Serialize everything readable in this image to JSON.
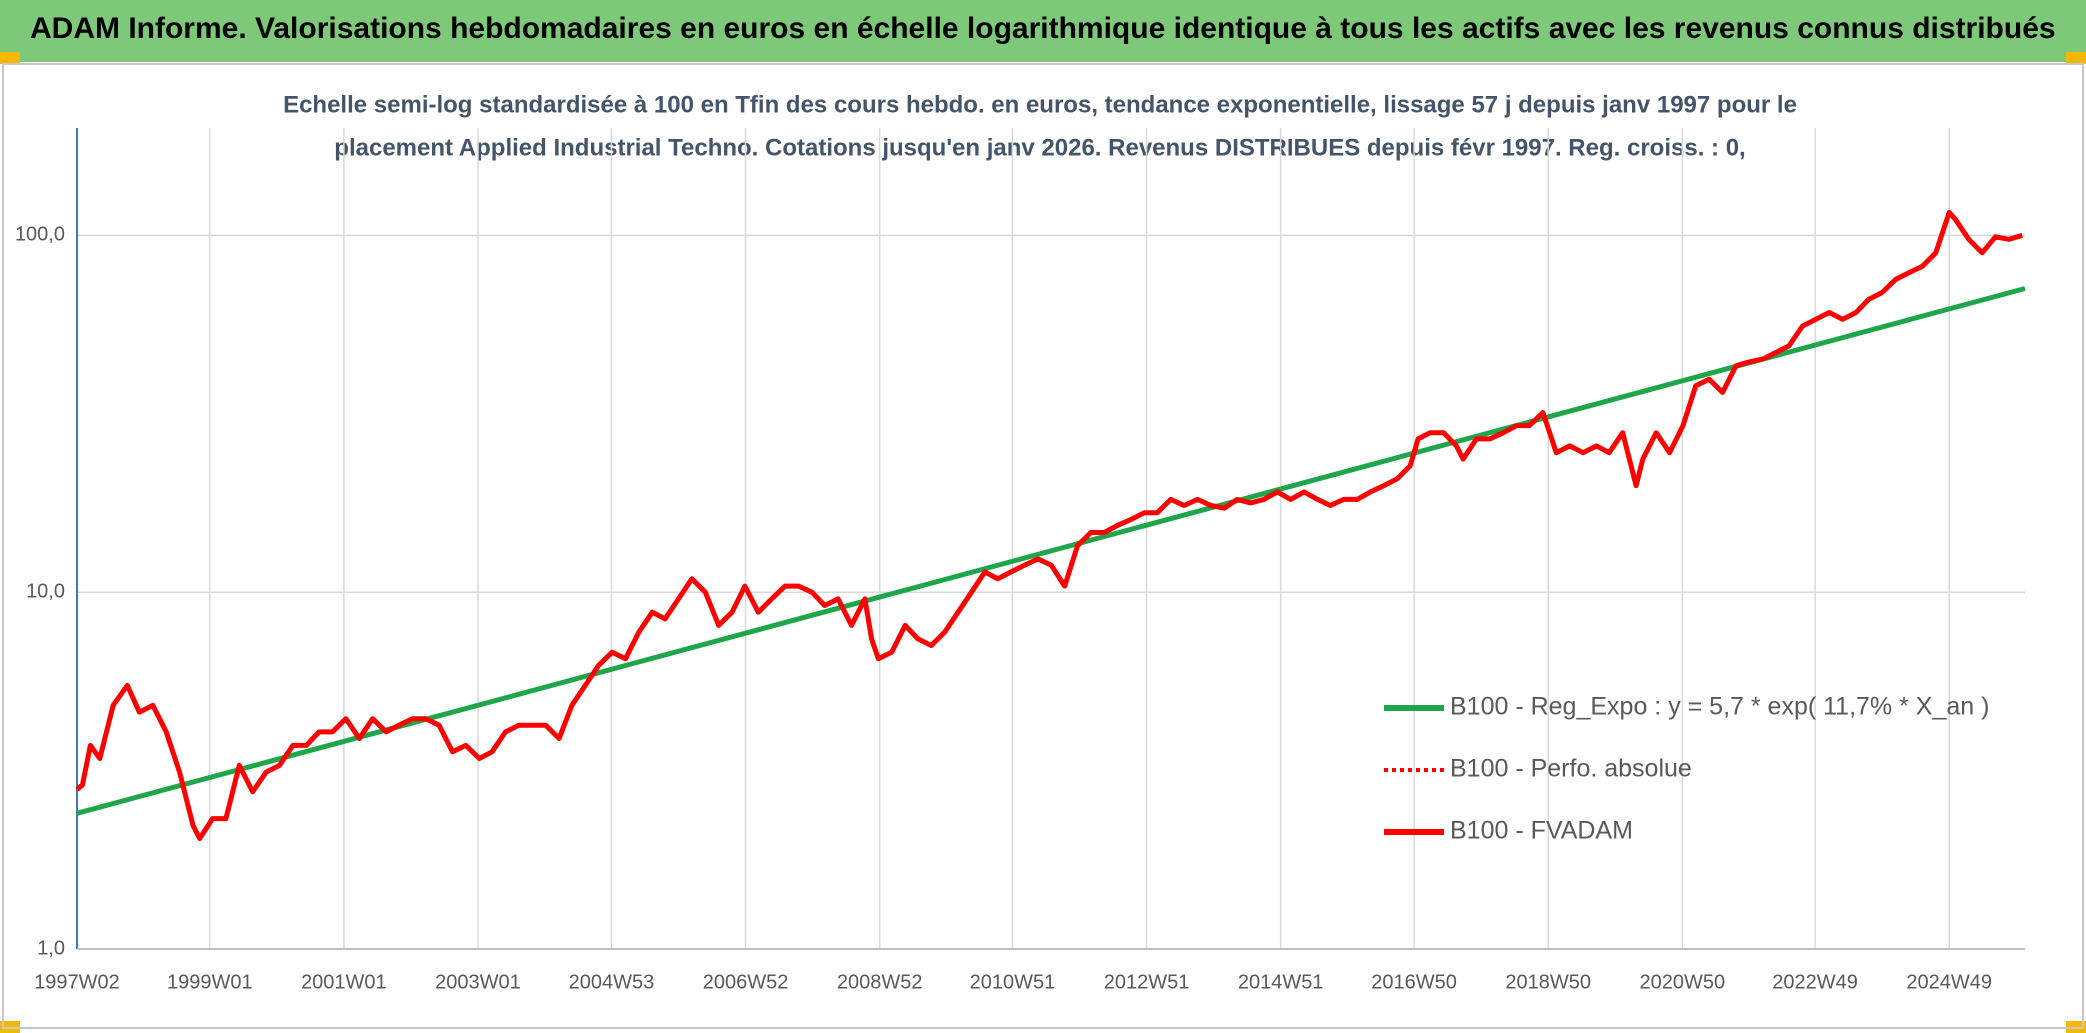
{
  "chart_data": {
    "type": "line",
    "title": "ADAM Informe. Valorisations hebdomadaires en euros en échelle logarithmique identique à tous les actifs avec les revenus connus distribués",
    "subtitle": [
      "Echelle semi-log standardisée à 100 en Tfin des cours hebdo. en euros, tendance exponentielle, lissage 57 j depuis janv 1997 pour le",
      "placement Applied Industrial Techno. Cotations jusqu'en janv 2026. Revenus DISTRIBUES depuis févr 1997. Reg. croiss. : 0,"
    ],
    "ylog": true,
    "grid": true,
    "legend": "right",
    "ylim": [
      1,
      200
    ],
    "yticks": [
      {
        "value": 1,
        "label": "1,0"
      },
      {
        "value": 10,
        "label": "10,0"
      },
      {
        "value": 100,
        "label": "100,0"
      }
    ],
    "xlim": [
      1997.02,
      2026.07
    ],
    "xticks": [
      {
        "value": 1997.02,
        "label": "1997W02"
      },
      {
        "value": 1999.0,
        "label": "1999W01"
      },
      {
        "value": 2001.0,
        "label": "2001W01"
      },
      {
        "value": 2003.0,
        "label": "2003W01"
      },
      {
        "value": 2004.99,
        "label": "2004W53"
      },
      {
        "value": 2006.99,
        "label": "2006W52"
      },
      {
        "value": 2008.99,
        "label": "2008W52"
      },
      {
        "value": 2010.97,
        "label": "2010W51"
      },
      {
        "value": 2012.97,
        "label": "2012W51"
      },
      {
        "value": 2014.97,
        "label": "2014W51"
      },
      {
        "value": 2016.96,
        "label": "2016W50"
      },
      {
        "value": 2018.96,
        "label": "2018W50"
      },
      {
        "value": 2020.96,
        "label": "2020W50"
      },
      {
        "value": 2022.94,
        "label": "2022W49"
      },
      {
        "value": 2024.94,
        "label": "2024W49"
      }
    ],
    "series": [
      {
        "name": "B100 - Reg_Expo : y = 5,7 * exp( 11,7% *  X_an )",
        "color": "#1fa64a",
        "line_style": "solid",
        "x": [
          1997.02,
          2026.07
        ],
        "values": [
          2.4,
          71
        ]
      },
      {
        "name": "B100 - Perfo. absolue",
        "color": "#ff0000",
        "line_style": "dotted",
        "x": [
          1997.02,
          1997.1,
          1997.22,
          1997.36,
          1997.56,
          1997.77,
          1997.95,
          1998.15,
          1998.35,
          1998.55,
          1998.75,
          1998.85,
          1999.04,
          1999.24,
          1999.44,
          1999.64,
          1999.84,
          2000.04,
          2000.24,
          2000.44,
          2000.63,
          2000.83,
          2001.03,
          2001.23,
          2001.43,
          2001.63,
          2001.82,
          2002.02,
          2002.22,
          2002.42,
          2002.62,
          2002.82,
          2003.02,
          2003.21,
          2003.41,
          2003.61,
          2003.81,
          2004.01,
          2004.21,
          2004.4,
          2004.6,
          2004.8,
          2005.0,
          2005.2,
          2005.4,
          2005.6,
          2005.79,
          2005.99,
          2006.19,
          2006.39,
          2006.59,
          2006.79,
          2006.98,
          2007.18,
          2007.38,
          2007.58,
          2007.78,
          2007.98,
          2008.17,
          2008.37,
          2008.57,
          2008.77,
          2008.87,
          2008.97,
          2009.17,
          2009.37,
          2009.56,
          2009.76,
          2009.96,
          2010.16,
          2010.36,
          2010.56,
          2010.75,
          2010.95,
          2011.15,
          2011.35,
          2011.55,
          2011.75,
          2011.94,
          2012.14,
          2012.34,
          2012.54,
          2012.74,
          2012.94,
          2013.13,
          2013.33,
          2013.53,
          2013.73,
          2013.93,
          2014.13,
          2014.32,
          2014.52,
          2014.72,
          2014.92,
          2015.12,
          2015.32,
          2015.52,
          2015.71,
          2015.91,
          2016.11,
          2016.31,
          2016.51,
          2016.71,
          2016.9,
          2017.02,
          2017.2,
          2017.4,
          2017.59,
          2017.69,
          2017.89,
          2018.09,
          2018.29,
          2018.49,
          2018.68,
          2018.88,
          2019.08,
          2019.28,
          2019.48,
          2019.68,
          2019.87,
          2020.07,
          2020.27,
          2020.37,
          2020.57,
          2020.77,
          2020.97,
          2021.16,
          2021.36,
          2021.56,
          2021.76,
          2021.96,
          2022.16,
          2022.36,
          2022.55,
          2022.75,
          2022.95,
          2023.15,
          2023.35,
          2023.55,
          2023.74,
          2023.94,
          2024.14,
          2024.34,
          2024.54,
          2024.74,
          2024.94,
          2025.03,
          2025.23,
          2025.43,
          2025.63,
          2025.83,
          2026.03
        ],
        "values": [
          2.8,
          2.88,
          3.72,
          3.42,
          4.82,
          5.48,
          4.61,
          4.82,
          4.06,
          3.13,
          2.22,
          2.04,
          2.32,
          2.32,
          3.27,
          2.76,
          3.13,
          3.27,
          3.72,
          3.72,
          4.06,
          4.06,
          4.42,
          3.89,
          4.42,
          4.06,
          4.24,
          4.42,
          4.42,
          4.24,
          3.57,
          3.72,
          3.42,
          3.57,
          4.06,
          4.24,
          4.24,
          4.24,
          3.89,
          4.82,
          5.48,
          6.24,
          6.79,
          6.51,
          7.73,
          8.79,
          8.42,
          9.58,
          10.9,
          10.0,
          8.07,
          8.79,
          10.4,
          8.79,
          9.58,
          10.4,
          10.4,
          10.0,
          9.18,
          9.58,
          8.07,
          9.58,
          7.4,
          6.51,
          6.79,
          8.07,
          7.4,
          7.09,
          7.73,
          8.79,
          10.0,
          11.4,
          10.9,
          11.4,
          11.9,
          12.4,
          11.9,
          10.4,
          13.5,
          14.7,
          14.7,
          15.4,
          16.0,
          16.7,
          16.7,
          18.2,
          17.5,
          18.2,
          17.5,
          17.2,
          18.2,
          17.8,
          18.2,
          19.1,
          18.2,
          19.1,
          18.2,
          17.5,
          18.2,
          18.2,
          19.1,
          19.9,
          20.8,
          22.6,
          26.9,
          28.0,
          28.0,
          25.7,
          23.6,
          26.9,
          26.9,
          28.0,
          29.3,
          29.3,
          31.9,
          24.6,
          25.7,
          24.6,
          25.7,
          24.6,
          28.0,
          19.9,
          23.6,
          28.0,
          24.6,
          29.3,
          37.9,
          39.5,
          36.3,
          43.1,
          44.2,
          45.0,
          47.0,
          49.0,
          55.7,
          58.2,
          60.8,
          58.2,
          60.8,
          66.2,
          69.2,
          75.3,
          78.6,
          82.0,
          89.4,
          116,
          111,
          97.5,
          89.4,
          99.1,
          97.5,
          100
        ]
      },
      {
        "name": "B100 - FVADAM",
        "color": "#ff0000",
        "line_style": "solid",
        "x": [
          1997.02,
          1997.1,
          1997.22,
          1997.36,
          1997.56,
          1997.77,
          1997.95,
          1998.15,
          1998.35,
          1998.55,
          1998.75,
          1998.85,
          1999.04,
          1999.24,
          1999.44,
          1999.64,
          1999.84,
          2000.04,
          2000.24,
          2000.44,
          2000.63,
          2000.83,
          2001.03,
          2001.23,
          2001.43,
          2001.63,
          2001.82,
          2002.02,
          2002.22,
          2002.42,
          2002.62,
          2002.82,
          2003.02,
          2003.21,
          2003.41,
          2003.61,
          2003.81,
          2004.01,
          2004.21,
          2004.4,
          2004.6,
          2004.8,
          2005.0,
          2005.2,
          2005.4,
          2005.6,
          2005.79,
          2005.99,
          2006.19,
          2006.39,
          2006.59,
          2006.79,
          2006.98,
          2007.18,
          2007.38,
          2007.58,
          2007.78,
          2007.98,
          2008.17,
          2008.37,
          2008.57,
          2008.77,
          2008.87,
          2008.97,
          2009.17,
          2009.37,
          2009.56,
          2009.76,
          2009.96,
          2010.16,
          2010.36,
          2010.56,
          2010.75,
          2010.95,
          2011.15,
          2011.35,
          2011.55,
          2011.75,
          2011.94,
          2012.14,
          2012.34,
          2012.54,
          2012.74,
          2012.94,
          2013.13,
          2013.33,
          2013.53,
          2013.73,
          2013.93,
          2014.13,
          2014.32,
          2014.52,
          2014.72,
          2014.92,
          2015.12,
          2015.32,
          2015.52,
          2015.71,
          2015.91,
          2016.11,
          2016.31,
          2016.51,
          2016.71,
          2016.9,
          2017.02,
          2017.2,
          2017.4,
          2017.59,
          2017.69,
          2017.89,
          2018.09,
          2018.29,
          2018.49,
          2018.68,
          2018.88,
          2019.08,
          2019.28,
          2019.48,
          2019.68,
          2019.87,
          2020.07,
          2020.27,
          2020.37,
          2020.57,
          2020.77,
          2020.97,
          2021.16,
          2021.36,
          2021.56,
          2021.76,
          2021.96,
          2022.16,
          2022.36,
          2022.55,
          2022.75,
          2022.95,
          2023.15,
          2023.35,
          2023.55,
          2023.74,
          2023.94,
          2024.14,
          2024.34,
          2024.54,
          2024.74,
          2024.94,
          2025.03,
          2025.23,
          2025.43,
          2025.63,
          2025.83,
          2026.03
        ],
        "values": [
          2.8,
          2.88,
          3.72,
          3.42,
          4.82,
          5.48,
          4.61,
          4.82,
          4.06,
          3.13,
          2.22,
          2.04,
          2.32,
          2.32,
          3.27,
          2.76,
          3.13,
          3.27,
          3.72,
          3.72,
          4.06,
          4.06,
          4.42,
          3.89,
          4.42,
          4.06,
          4.24,
          4.42,
          4.42,
          4.24,
          3.57,
          3.72,
          3.42,
          3.57,
          4.06,
          4.24,
          4.24,
          4.24,
          3.89,
          4.82,
          5.48,
          6.24,
          6.79,
          6.51,
          7.73,
          8.79,
          8.42,
          9.58,
          10.9,
          10.0,
          8.07,
          8.79,
          10.4,
          8.79,
          9.58,
          10.4,
          10.4,
          10.0,
          9.18,
          9.58,
          8.07,
          9.58,
          7.4,
          6.51,
          6.79,
          8.07,
          7.4,
          7.09,
          7.73,
          8.79,
          10.0,
          11.4,
          10.9,
          11.4,
          11.9,
          12.4,
          11.9,
          10.4,
          13.5,
          14.7,
          14.7,
          15.4,
          16.0,
          16.7,
          16.7,
          18.2,
          17.5,
          18.2,
          17.5,
          17.2,
          18.2,
          17.8,
          18.2,
          19.1,
          18.2,
          19.1,
          18.2,
          17.5,
          18.2,
          18.2,
          19.1,
          19.9,
          20.8,
          22.6,
          26.9,
          28.0,
          28.0,
          25.7,
          23.6,
          26.9,
          26.9,
          28.0,
          29.3,
          29.3,
          31.9,
          24.6,
          25.7,
          24.6,
          25.7,
          24.6,
          28.0,
          19.9,
          23.6,
          28.0,
          24.6,
          29.3,
          37.9,
          39.5,
          36.3,
          43.1,
          44.2,
          45.0,
          47.0,
          49.0,
          55.7,
          58.2,
          60.8,
          58.2,
          60.8,
          66.2,
          69.2,
          75.3,
          78.6,
          82.0,
          89.4,
          116,
          111,
          97.5,
          89.4,
          99.1,
          97.5,
          100
        ]
      }
    ]
  }
}
